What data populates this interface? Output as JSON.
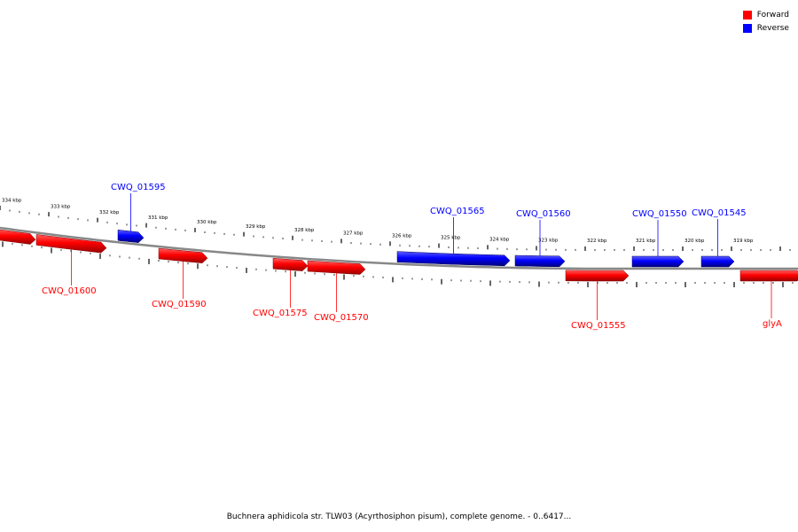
{
  "legend": [
    {
      "label": "Forward",
      "color": "#ff0000"
    },
    {
      "label": "Reverse",
      "color": "#0000ff"
    }
  ],
  "caption": "Buchnera aphidicola str. TLW03 (Acyrthosiphon pisum), complete genome. - 0..6417...",
  "colors": {
    "forward": "#ff0000",
    "reverse": "#0000ff",
    "backbone": "#888888"
  },
  "ruler_labels": [
    "334 kbp",
    "333 kbp",
    "332 kbp",
    "331 kbp",
    "330 kbp",
    "329 kbp",
    "328 kbp",
    "327 kbp",
    "326 kbp",
    "325 kbp",
    "324 kbp",
    "323 kbp",
    "322 kbp",
    "321 kbp",
    "320 kbp",
    "319 kbp"
  ],
  "genes": [
    {
      "name": "CWQ_01595",
      "strand": "reverse"
    },
    {
      "name": "CWQ_01565",
      "strand": "reverse"
    },
    {
      "name": "CWQ_01560",
      "strand": "reverse"
    },
    {
      "name": "CWQ_01550",
      "strand": "reverse"
    },
    {
      "name": "CWQ_01545",
      "strand": "reverse"
    },
    {
      "name": "",
      "strand": "forward"
    },
    {
      "name": "CWQ_01600",
      "strand": "forward"
    },
    {
      "name": "CWQ_01590",
      "strand": "forward"
    },
    {
      "name": "CWQ_01575",
      "strand": "forward"
    },
    {
      "name": "CWQ_01570",
      "strand": "forward"
    },
    {
      "name": "CWQ_01555",
      "strand": "forward"
    },
    {
      "name": "glyA",
      "strand": "forward"
    }
  ]
}
